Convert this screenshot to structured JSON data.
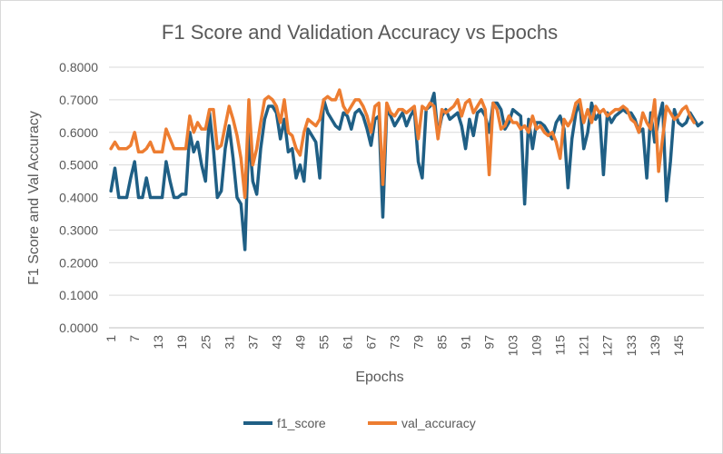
{
  "chart_data": {
    "type": "line",
    "title": "F1 Score and Validation Accuracy vs Epochs",
    "xlabel": "Epochs",
    "ylabel": "F1 Score and Val Accuracy",
    "ylim": [
      0,
      0.8
    ],
    "ytick_labels": [
      "0.0000",
      "0.1000",
      "0.2000",
      "0.3000",
      "0.4000",
      "0.5000",
      "0.6000",
      "0.7000",
      "0.8000"
    ],
    "xtick_labels": [
      "1",
      "7",
      "13",
      "19",
      "25",
      "31",
      "37",
      "43",
      "49",
      "55",
      "61",
      "67",
      "73",
      "79",
      "85",
      "91",
      "97",
      "103",
      "109",
      "115",
      "121",
      "127",
      "133",
      "139",
      "145"
    ],
    "grid": true,
    "legend_position": "bottom",
    "series": [
      {
        "name": "f1_score",
        "color": "#1f5f85",
        "values": [
          0.42,
          0.49,
          0.4,
          0.4,
          0.4,
          0.46,
          0.51,
          0.4,
          0.4,
          0.46,
          0.4,
          0.4,
          0.4,
          0.4,
          0.51,
          0.45,
          0.4,
          0.4,
          0.41,
          0.41,
          0.6,
          0.54,
          0.57,
          0.5,
          0.45,
          0.66,
          0.55,
          0.4,
          0.42,
          0.55,
          0.62,
          0.52,
          0.4,
          0.38,
          0.24,
          0.6,
          0.45,
          0.41,
          0.55,
          0.64,
          0.68,
          0.68,
          0.66,
          0.58,
          0.64,
          0.54,
          0.55,
          0.46,
          0.5,
          0.45,
          0.61,
          0.59,
          0.57,
          0.46,
          0.7,
          0.66,
          0.64,
          0.62,
          0.61,
          0.66,
          0.65,
          0.61,
          0.66,
          0.67,
          0.65,
          0.61,
          0.56,
          0.64,
          0.65,
          0.34,
          0.67,
          0.65,
          0.62,
          0.64,
          0.66,
          0.62,
          0.65,
          0.67,
          0.51,
          0.46,
          0.67,
          0.68,
          0.72,
          0.59,
          0.65,
          0.67,
          0.64,
          0.65,
          0.66,
          0.62,
          0.55,
          0.64,
          0.59,
          0.66,
          0.67,
          0.65,
          0.6,
          0.69,
          0.69,
          0.67,
          0.61,
          0.63,
          0.67,
          0.66,
          0.65,
          0.38,
          0.64,
          0.55,
          0.63,
          0.63,
          0.62,
          0.6,
          0.58,
          0.63,
          0.65,
          0.61,
          0.43,
          0.58,
          0.66,
          0.69,
          0.55,
          0.6,
          0.69,
          0.64,
          0.66,
          0.47,
          0.66,
          0.63,
          0.65,
          0.66,
          0.67,
          0.66,
          0.66,
          0.64,
          0.6,
          0.61,
          0.46,
          0.66,
          0.57,
          0.64,
          0.69,
          0.39,
          0.51,
          0.67,
          0.63,
          0.62,
          0.63,
          0.66,
          0.64,
          0.62,
          0.63
        ]
      },
      {
        "name": "val_accuracy",
        "color": "#ed7d31",
        "values": [
          0.55,
          0.57,
          0.55,
          0.55,
          0.55,
          0.56,
          0.6,
          0.54,
          0.54,
          0.55,
          0.57,
          0.54,
          0.54,
          0.54,
          0.61,
          0.58,
          0.55,
          0.55,
          0.55,
          0.55,
          0.65,
          0.6,
          0.63,
          0.61,
          0.61,
          0.67,
          0.67,
          0.55,
          0.56,
          0.62,
          0.68,
          0.64,
          0.59,
          0.52,
          0.4,
          0.7,
          0.5,
          0.55,
          0.63,
          0.7,
          0.71,
          0.7,
          0.68,
          0.63,
          0.7,
          0.6,
          0.59,
          0.55,
          0.53,
          0.6,
          0.64,
          0.63,
          0.62,
          0.64,
          0.7,
          0.71,
          0.7,
          0.7,
          0.73,
          0.68,
          0.66,
          0.68,
          0.7,
          0.7,
          0.68,
          0.65,
          0.6,
          0.68,
          0.69,
          0.44,
          0.69,
          0.66,
          0.65,
          0.67,
          0.67,
          0.66,
          0.67,
          0.68,
          0.58,
          0.68,
          0.67,
          0.69,
          0.68,
          0.58,
          0.67,
          0.66,
          0.67,
          0.68,
          0.7,
          0.65,
          0.69,
          0.7,
          0.66,
          0.68,
          0.7,
          0.67,
          0.47,
          0.69,
          0.67,
          0.61,
          0.62,
          0.65,
          0.63,
          0.63,
          0.61,
          0.62,
          0.6,
          0.65,
          0.61,
          0.62,
          0.6,
          0.59,
          0.6,
          0.57,
          0.52,
          0.64,
          0.62,
          0.64,
          0.69,
          0.7,
          0.63,
          0.67,
          0.63,
          0.68,
          0.66,
          0.67,
          0.65,
          0.66,
          0.67,
          0.67,
          0.68,
          0.67,
          0.64,
          0.63,
          0.6,
          0.66,
          0.63,
          0.61,
          0.7,
          0.48,
          0.58,
          0.68,
          0.66,
          0.64,
          0.65,
          0.67,
          0.68,
          0.65,
          0.63
        ]
      }
    ]
  }
}
